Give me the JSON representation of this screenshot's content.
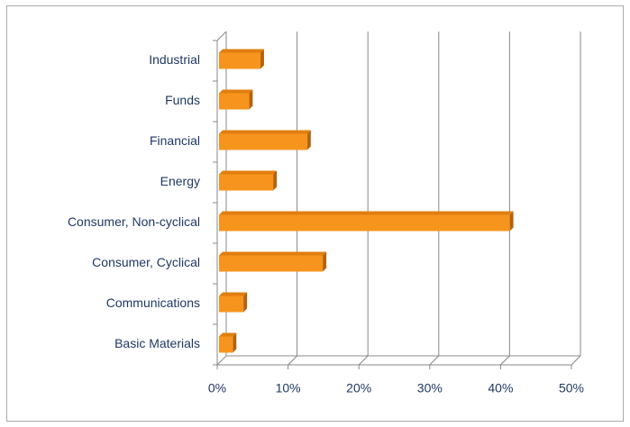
{
  "chart_data": {
    "type": "bar3d_horizontal",
    "categories": [
      "Basic Materials",
      "Communications",
      "Consumer, Cyclical",
      "Consumer, Non-cyclical",
      "Energy",
      "Financial",
      "Funds",
      "Industrial"
    ],
    "values": [
      2.2,
      3.7,
      14.9,
      41.3,
      7.9,
      12.7,
      4.5,
      6.1
    ],
    "color": "#f7941d",
    "xlim": [
      0,
      50
    ],
    "xticks": [
      {
        "value": 0,
        "label": "0%"
      },
      {
        "value": 10,
        "label": "10%"
      },
      {
        "value": 20,
        "label": "20%"
      },
      {
        "value": 30,
        "label": "30%"
      },
      {
        "value": 40,
        "label": "40%"
      },
      {
        "value": 50,
        "label": "50%"
      }
    ],
    "grid": true
  }
}
